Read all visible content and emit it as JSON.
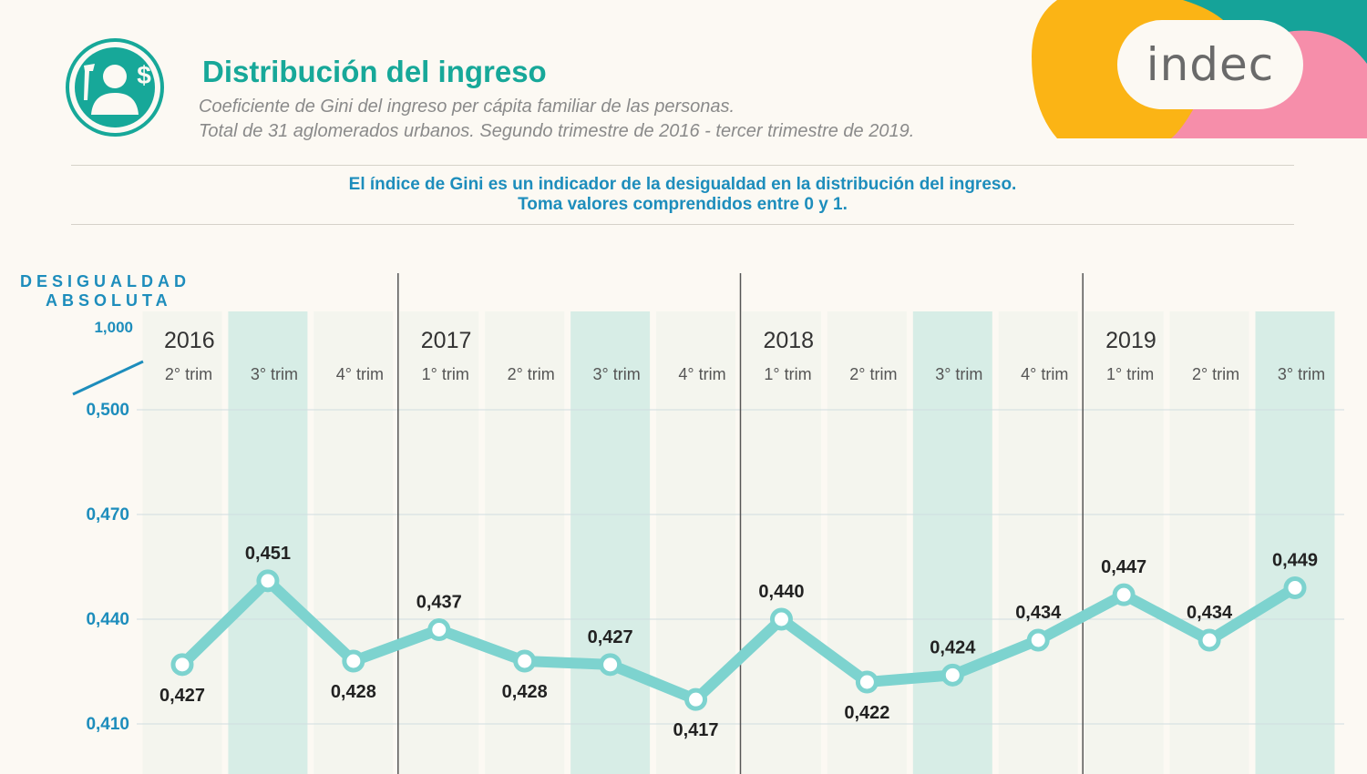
{
  "brand": {
    "name": "indec"
  },
  "header": {
    "title": "Distribución del ingreso",
    "subtitle_line1": "Coeficiente de Gini del ingreso per cápita familiar de las personas.",
    "subtitle_line2": "Total de 31 aglomerados urbanos. Segundo trimestre de 2016 - tercer trimestre de 2019."
  },
  "note": {
    "line1": "El índice de Gini es un indicador de la desigualdad en la distribución del ingreso.",
    "line2": "Toma valores comprendidos entre 0 y 1."
  },
  "icon": {
    "name": "person-wrench-dollar-icon"
  },
  "colors": {
    "accent": "#17a899",
    "line": "#7dd3cf",
    "axis_text": "#1d8dbc",
    "band": "#d7ede6",
    "band_light": "#f1f4ec"
  },
  "chart_data": {
    "type": "line",
    "ylabel_line1": "DESIGUALDAD",
    "ylabel_line2": "ABSOLUTA",
    "y_break_ticks": [
      "1,000",
      "0,500"
    ],
    "y_ticks": [
      {
        "value": 0.47,
        "label": "0,470"
      },
      {
        "value": 0.44,
        "label": "0,440"
      },
      {
        "value": 0.41,
        "label": "0,410"
      }
    ],
    "ylim": [
      0.41,
      0.47
    ],
    "years": [
      {
        "label": "2016",
        "start": 0
      },
      {
        "label": "2017",
        "start": 3
      },
      {
        "label": "2018",
        "start": 7
      },
      {
        "label": "2019",
        "start": 11
      }
    ],
    "categories": [
      "2° trim",
      "3° trim",
      "4° trim",
      "1° trim",
      "2° trim",
      "3° trim",
      "4° trim",
      "1° trim",
      "2° trim",
      "3° trim",
      "4° trim",
      "1° trim",
      "2° trim",
      "3° trim"
    ],
    "values": [
      0.427,
      0.451,
      0.428,
      0.437,
      0.428,
      0.427,
      0.417,
      0.44,
      0.422,
      0.424,
      0.434,
      0.447,
      0.434,
      0.449
    ],
    "value_labels": [
      "0,427",
      "0,451",
      "0,428",
      "0,437",
      "0,428",
      "0,427",
      "0,417",
      "0,440",
      "0,422",
      "0,424",
      "0,434",
      "0,447",
      "0,434",
      "0,449"
    ],
    "label_positions": [
      "below",
      "above",
      "below",
      "above",
      "below",
      "above",
      "below",
      "above",
      "below",
      "above",
      "above",
      "above",
      "above",
      "above"
    ],
    "grid": true
  }
}
